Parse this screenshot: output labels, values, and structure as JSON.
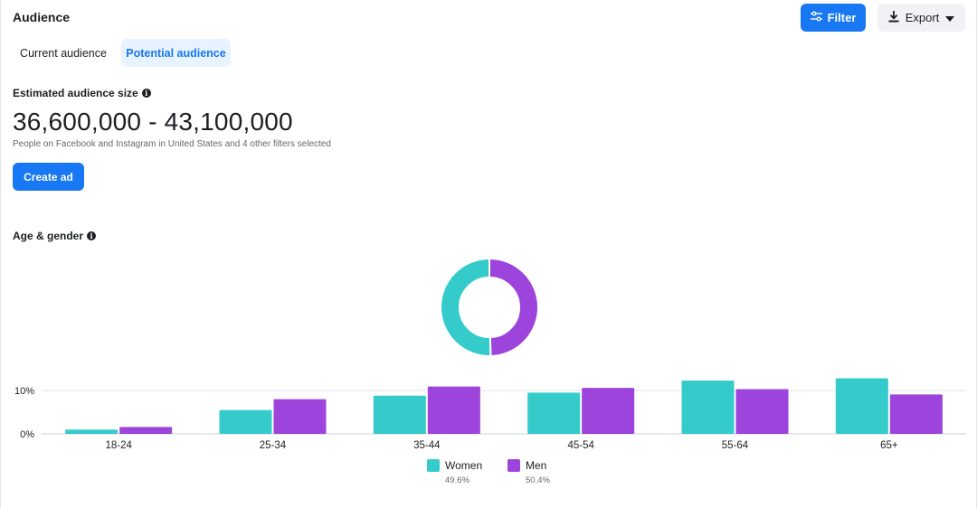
{
  "header": {
    "title": "Audience",
    "filter_label": "Filter",
    "export_label": "Export"
  },
  "tabs": [
    {
      "label": "Current audience",
      "active": false
    },
    {
      "label": "Potential audience",
      "active": true
    }
  ],
  "audience_size": {
    "label": "Estimated audience size",
    "value": "36,600,000 - 43,100,000",
    "description": "People on Facebook and Instagram in United States and 4 other filters selected",
    "create_label": "Create ad"
  },
  "age_gender": {
    "label": "Age & gender"
  },
  "colors": {
    "women": "#35cbcb",
    "men": "#9c44dc",
    "accent": "#1877f2"
  },
  "chart_data": {
    "type": "bar",
    "categories": [
      "18-24",
      "25-34",
      "35-44",
      "45-54",
      "55-64",
      "65+"
    ],
    "series": [
      {
        "name": "Women",
        "values": [
          1.0,
          5.5,
          8.8,
          9.5,
          12.3,
          12.8
        ]
      },
      {
        "name": "Men",
        "values": [
          1.6,
          8.0,
          10.9,
          10.6,
          10.3,
          9.1
        ]
      }
    ],
    "ytick_labels": [
      "0%",
      "10%"
    ],
    "ylim": [
      0,
      14
    ],
    "donut": [
      {
        "name": "Women",
        "percent": 49.6,
        "label": "49.6%"
      },
      {
        "name": "Men",
        "percent": 50.4,
        "label": "50.4%"
      }
    ],
    "legend_position": "bottom"
  }
}
